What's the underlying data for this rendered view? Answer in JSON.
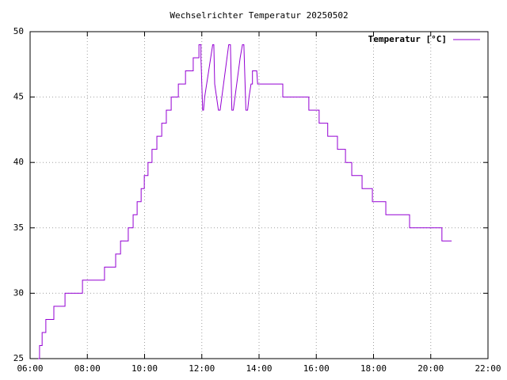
{
  "chart_data": {
    "type": "line",
    "title": "Wechselrichter Temperatur 20250502",
    "x": [
      6.28,
      6.33,
      6.33,
      6.42,
      6.42,
      6.55,
      6.55,
      6.83,
      6.83,
      7.22,
      7.22,
      7.83,
      7.83,
      8.6,
      8.6,
      8.99,
      8.99,
      9.16,
      9.16,
      9.43,
      9.43,
      9.6,
      9.6,
      9.74,
      9.74,
      9.88,
      9.88,
      9.99,
      9.99,
      10.12,
      10.12,
      10.26,
      10.26,
      10.43,
      10.43,
      10.6,
      10.6,
      10.76,
      10.76,
      10.93,
      10.93,
      11.18,
      11.18,
      11.43,
      11.43,
      11.7,
      11.7,
      11.9,
      11.9,
      11.97,
      11.97,
      12.03,
      12.06,
      12.1,
      12.17,
      12.24,
      12.31,
      12.38,
      12.42,
      12.45,
      12.58,
      12.64,
      12.7,
      12.76,
      12.82,
      12.88,
      12.94,
      13.0,
      13.05,
      13.1,
      13.16,
      13.22,
      13.28,
      13.34,
      13.42,
      13.47,
      13.54,
      13.6,
      13.65,
      13.72,
      13.77,
      13.77,
      13.92,
      13.95,
      14.83,
      14.83,
      15.74,
      15.74,
      16.1,
      16.1,
      16.4,
      16.4,
      16.74,
      16.74,
      17.02,
      17.02,
      17.24,
      17.24,
      17.6,
      17.6,
      17.96,
      17.96,
      18.43,
      18.43,
      19.26,
      19.26,
      20.39,
      20.39,
      20.73
    ],
    "series": [
      {
        "name": "Temperatur [°C]",
        "color": "#9400d3",
        "values": [
          25,
          25,
          26,
          26,
          27,
          27,
          28,
          28,
          29,
          29,
          30,
          30,
          31,
          31,
          32,
          32,
          33,
          33,
          34,
          34,
          35,
          35,
          36,
          36,
          37,
          37,
          38,
          38,
          39,
          39,
          40,
          40,
          41,
          41,
          42,
          42,
          43,
          43,
          44,
          44,
          45,
          45,
          46,
          46,
          47,
          47,
          48,
          48,
          49,
          49,
          48,
          44,
          44,
          45,
          46,
          47,
          48,
          49,
          49,
          46,
          44,
          44,
          45,
          46,
          47,
          48,
          49,
          49,
          44,
          44,
          45,
          46,
          47,
          48,
          49,
          49,
          44,
          44,
          45,
          46,
          46,
          47,
          47,
          46,
          46,
          45,
          45,
          44,
          44,
          43,
          43,
          42,
          42,
          41,
          41,
          40,
          40,
          39,
          39,
          38,
          38,
          37,
          37,
          36,
          36,
          35,
          35,
          34,
          34
        ]
      }
    ],
    "xlim": [
      6,
      22
    ],
    "xticks": [
      {
        "value": 6,
        "label": "06:00"
      },
      {
        "value": 8,
        "label": "08:00"
      },
      {
        "value": 10,
        "label": "10:00"
      },
      {
        "value": 12,
        "label": "12:00"
      },
      {
        "value": 14,
        "label": "14:00"
      },
      {
        "value": 16,
        "label": "16:00"
      },
      {
        "value": 18,
        "label": "18:00"
      },
      {
        "value": 20,
        "label": "20:00"
      },
      {
        "value": 22,
        "label": "22:00"
      }
    ],
    "ylim": [
      25,
      50
    ],
    "yticks": [
      25,
      30,
      35,
      40,
      45,
      50
    ],
    "grid": true,
    "legend": "top-right"
  }
}
